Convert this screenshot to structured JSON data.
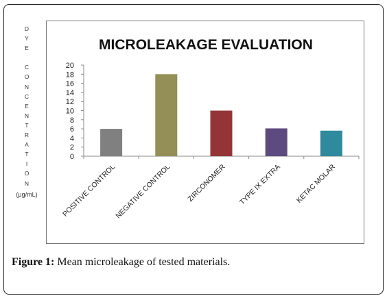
{
  "chart_data": {
    "type": "bar",
    "title": "MICROLEAKAGE EVALUATION",
    "ylabel_letters": [
      "D",
      "Y",
      "E",
      "",
      "C",
      "O",
      "N",
      "C",
      "E",
      "N",
      "T",
      "R",
      "A",
      "T",
      "I",
      "O",
      "N"
    ],
    "ylabel_unit": "(μg/mL)",
    "xlabel": "",
    "ylim": [
      0,
      20
    ],
    "yticks": [
      0,
      2,
      4,
      6,
      8,
      10,
      12,
      14,
      16,
      18,
      20
    ],
    "categories": [
      "POSITIVE CONTROL",
      "NEGATIVE CONTROL",
      "ZIRCONOMER",
      "TYPE IX EXTRA",
      "KETAC MOLAR"
    ],
    "values": [
      6,
      18,
      10,
      6.1,
      5.6
    ],
    "colors": [
      "#808080",
      "#938f57",
      "#933537",
      "#5d4a7e",
      "#2f8a9e"
    ],
    "grid": false,
    "legend": "none"
  },
  "caption": {
    "label": "Figure 1:",
    "text": " Mean microleakage of tested materials."
  }
}
